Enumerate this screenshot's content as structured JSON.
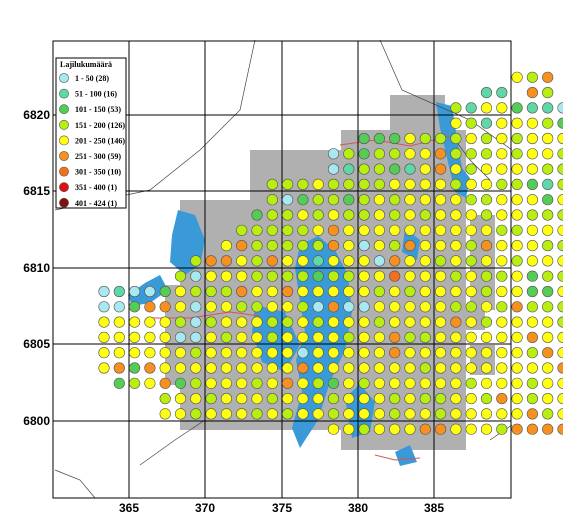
{
  "legend": {
    "title": "Lajilukumäärä",
    "classes": [
      {
        "label": "1 - 50 (28)",
        "color": "#a8e8f0",
        "min": 1,
        "max": 50
      },
      {
        "label": "51 - 100 (16)",
        "color": "#5fd7a6",
        "min": 51,
        "max": 100
      },
      {
        "label": "101 - 150 (53)",
        "color": "#55cc55",
        "min": 101,
        "max": 150
      },
      {
        "label": "151 - 200 (126)",
        "color": "#b8ee10",
        "min": 151,
        "max": 200
      },
      {
        "label": "201 - 250 (146)",
        "color": "#ffff10",
        "min": 201,
        "max": 250
      },
      {
        "label": "251 - 300 (59)",
        "color": "#f89020",
        "min": 251,
        "max": 300
      },
      {
        "label": "301 - 350 (10)",
        "color": "#f07020",
        "min": 301,
        "max": 350
      },
      {
        "label": "351 - 400 (1)",
        "color": "#e01010",
        "min": 351,
        "max": 400
      },
      {
        "label": "401 - 424 (1)",
        "color": "#801010",
        "min": 401,
        "max": 424
      }
    ]
  },
  "x_axis": {
    "ticks": [
      "365",
      "370",
      "375",
      "380",
      "385"
    ]
  },
  "y_axis": {
    "ticks": [
      "6820",
      "6815",
      "6810",
      "6805",
      "6800"
    ]
  },
  "colors": {
    "water": "#3a9ad8",
    "land_gray": "#b0b0b0",
    "grid": "#000000",
    "road": "#e05050"
  },
  "grid_rows": [
    "...........................EDF..........",
    ".........................BB.FD..........",
    ".......................DBEECBBA.........",
    ".......................EDBEEEDC.........",
    ".................CCCEDDDEDEDEEEC........",
    "...............ADCDDEEFDDDEDEEDE........",
    "...............ABDDCBEFEDEEEEDDEE.......",
    "...........DDDEDDDDEEEEDEEDDCBDDDD......",
    "...........DACDDCDEDEEEEDDEEECEEED......",
    "..........CDDEDEDDEDEDEEEDEEDDDCDDE.....",
    ".........DDDDDEFEEEEEEEEEEDDEEEEDDE.....",
    "........EFDDDDDFEAEDFEEEDFEEEDDDDDD.....",
    "......DFFEDFEEBEEEAFEEDEDEEDEEEDDDDB....",
    ".....DAEEEDDDDCDDEEGEEEDEDDECDDDDDE.....",
    "ABAACEDDDFEEFEEEEEDEDEEEEDEECCEDDDE.....",
    "AACFFEAEEDDEEDAFAAEEEEEDDEDFDDDHEDEE....",
    "EEEEEDADEEEDDEDEEEDEEEEFEDEEEEDEEDEF....",
    "EEEEEAAEDEEDEEEEDEEFDDEEEEEEFEEEEDEF....",
    "EEEEEEDEEEEEEAEEEEEFEEEEEEEEDFEEEEEF....",
    "EFCFEEEEEEEEEFEEEEEEEDEEEEEEEEFDEEDE....",
    ".CDEFCDEEEDEFEDCEDEEEEEEDEEEDEEEECCE....",
    "....DEEDEEEDEEEDEEEDEDDEEDFEDEEEEE......",
    "....EEDEEEDEDEEDEEEDEEDEEEEEFDEDDD......",
    "...............EEDEEEFFEEEDFFFFFF.......",
    "...............................E........"
  ]
}
